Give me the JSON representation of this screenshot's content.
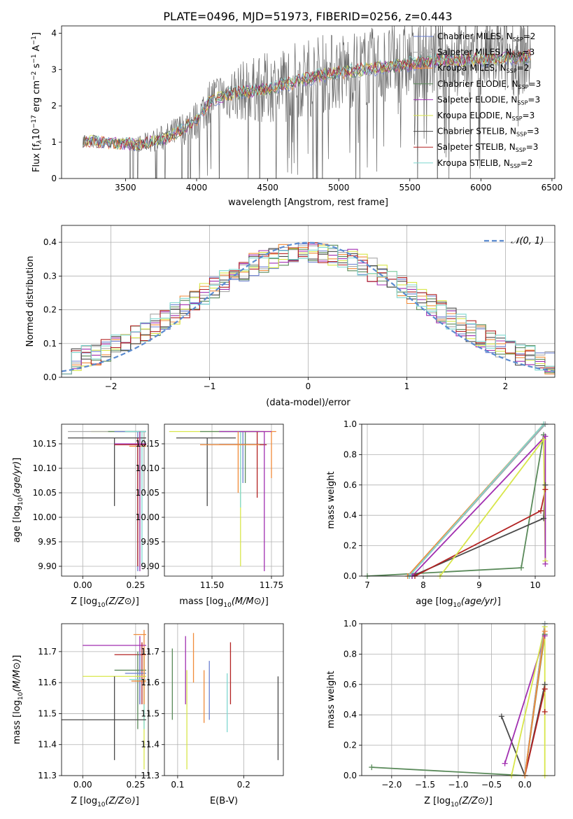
{
  "figure": {
    "title": "PLATE=0496, MJD=51973, FIBERID=0256, z=0.443"
  },
  "models": [
    {
      "name": "Chabrier MILES",
      "nssp": "2",
      "color": "#6b7fd0"
    },
    {
      "name": "Salpeter MILES",
      "nssp": "3",
      "color": "#a8a8a8"
    },
    {
      "name": "Kroupa MILES",
      "nssp": "2",
      "color": "#f08b3a"
    },
    {
      "name": "Chabrier ELODIE",
      "nssp": "3",
      "color": "#5a8a5a"
    },
    {
      "name": "Salpeter ELODIE",
      "nssp": "3",
      "color": "#a12fb0"
    },
    {
      "name": "Kroupa ELODIE",
      "nssp": "3",
      "color": "#d8e64a"
    },
    {
      "name": "Chabrier STELIB",
      "nssp": "3",
      "color": "#4a4a4a"
    },
    {
      "name": "Salpeter STELIB",
      "nssp": "3",
      "color": "#b22222"
    },
    {
      "name": "Kroupa STELIB",
      "nssp": "2",
      "color": "#7fd8d0"
    }
  ],
  "chart_data": [
    {
      "id": "spectrum",
      "type": "line",
      "xlabel": "wavelength [Angstrom, rest frame]",
      "ylabel_parts": [
        "Flux [f",
        "λ",
        "10",
        "−17",
        " erg cm",
        "−2",
        " s",
        "−1",
        " A",
        "−1",
        "]"
      ],
      "xlim": [
        3050,
        6520
      ],
      "ylim": [
        0,
        4.2
      ],
      "xticks": [
        3500,
        4000,
        4500,
        5000,
        5500,
        6000,
        6500
      ],
      "yticks": [
        0,
        1,
        2,
        3,
        4
      ],
      "data_color": "#666666",
      "continuum": [
        [
          3200,
          1.05
        ],
        [
          3400,
          1.0
        ],
        [
          3600,
          0.95
        ],
        [
          3800,
          1.15
        ],
        [
          4000,
          1.6
        ],
        [
          4100,
          2.2
        ],
        [
          4300,
          2.4
        ],
        [
          4500,
          2.5
        ],
        [
          4700,
          2.7
        ],
        [
          4900,
          2.9
        ],
        [
          5100,
          3.0
        ],
        [
          5300,
          3.1
        ],
        [
          5500,
          3.2
        ],
        [
          5700,
          3.3
        ],
        [
          5900,
          3.3
        ],
        [
          6100,
          3.35
        ],
        [
          6350,
          3.4
        ]
      ],
      "data_noise": {
        "lo": 3200,
        "hi": 6350,
        "n": 900,
        "amp_blue": 0.12,
        "amp_red": 1.1,
        "seed": 7
      }
    },
    {
      "id": "residuals",
      "type": "histogram",
      "xlabel": "(data-model)/error",
      "ylabel": "Normed distribution",
      "xlim": [
        -2.5,
        2.5
      ],
      "ylim": [
        0,
        0.45
      ],
      "xticks": [
        -2,
        -1,
        0,
        1,
        2
      ],
      "yticks": [
        0.0,
        0.1,
        0.2,
        0.3,
        0.4
      ],
      "bins": {
        "start": -2.5,
        "width": 0.1,
        "count": 50
      },
      "reference": {
        "label": "𝒩(0, 1)",
        "color": "#5b8bd0",
        "mu": 0,
        "sigma": 1
      }
    },
    {
      "id": "age_vs_Z",
      "type": "errorbar",
      "xlabel": "Z [log10(Z/Z⊙)]",
      "ylabel": "age  [log10(age/yr)]",
      "xlim": [
        -0.1,
        0.31
      ],
      "ylim": [
        9.88,
        10.19
      ],
      "xticks": [
        0.0,
        0.25
      ],
      "yticks": [
        9.9,
        9.95,
        10.0,
        10.05,
        10.1,
        10.15
      ],
      "points": [
        {
          "x": 0.27,
          "xlo": 0.04,
          "xhi": 0.3,
          "y": 10.175,
          "ylo": 9.9,
          "yhi": 10.175,
          "model": 5
        },
        {
          "x": 0.29,
          "xlo": -0.07,
          "xhi": 0.3,
          "y": 10.175,
          "ylo": 10.05,
          "yhi": 10.175,
          "model": 1
        },
        {
          "x": 0.27,
          "xlo": 0.12,
          "xhi": 0.3,
          "y": 10.175,
          "ylo": 10.05,
          "yhi": 10.175,
          "model": 3
        },
        {
          "x": 0.26,
          "xlo": 0.15,
          "xhi": 0.3,
          "y": 10.175,
          "ylo": 9.89,
          "yhi": 10.175,
          "model": 0
        },
        {
          "x": 0.28,
          "xlo": 0.2,
          "xhi": 0.3,
          "y": 10.175,
          "ylo": 9.9,
          "yhi": 10.175,
          "model": 8
        },
        {
          "x": 0.15,
          "xlo": -0.07,
          "xhi": 0.3,
          "y": 10.162,
          "ylo": 10.023,
          "yhi": 10.162,
          "model": 6
        },
        {
          "x": 0.26,
          "xlo": 0.15,
          "xhi": 0.3,
          "y": 10.148,
          "ylo": 9.9,
          "yhi": 10.162,
          "model": 7
        },
        {
          "x": 0.27,
          "xlo": 0.22,
          "xhi": 0.3,
          "y": 10.145,
          "ylo": 10.06,
          "yhi": 10.175,
          "model": 2
        },
        {
          "x": 0.27,
          "xlo": 0.15,
          "xhi": 0.3,
          "y": 10.15,
          "ylo": 9.89,
          "yhi": 10.175,
          "model": 4
        }
      ]
    },
    {
      "id": "age_vs_mass",
      "type": "errorbar",
      "xlabel": "mass [log10(M/M⊙)]",
      "xlim": [
        11.3,
        11.8
      ],
      "ylim": [
        9.88,
        10.19
      ],
      "xticks": [
        11.5,
        11.75
      ],
      "yticks": [
        9.9,
        9.95,
        10.0,
        10.05,
        10.1,
        10.15
      ],
      "points": [
        {
          "x": 11.62,
          "xlo": 11.32,
          "xhi": 11.7,
          "y": 10.175,
          "ylo": 9.9,
          "yhi": 10.175,
          "model": 5
        },
        {
          "x": 11.64,
          "xlo": 11.45,
          "xhi": 11.7,
          "y": 10.175,
          "ylo": 10.07,
          "yhi": 10.175,
          "model": 3
        },
        {
          "x": 11.63,
          "xlo": 11.53,
          "xhi": 11.72,
          "y": 10.175,
          "ylo": 10.07,
          "yhi": 10.175,
          "model": 0
        },
        {
          "x": 11.75,
          "xlo": 11.62,
          "xhi": 11.77,
          "y": 10.175,
          "ylo": 10.08,
          "yhi": 10.175,
          "model": 2
        },
        {
          "x": 11.48,
          "xlo": 11.35,
          "xhi": 11.6,
          "y": 10.162,
          "ylo": 10.023,
          "yhi": 10.162,
          "model": 6
        },
        {
          "x": 11.62,
          "xlo": 11.6,
          "xhi": 11.63,
          "y": 10.175,
          "ylo": 10.02,
          "yhi": 10.175,
          "model": 8
        },
        {
          "x": 11.69,
          "xlo": 11.53,
          "xhi": 11.73,
          "y": 10.148,
          "ylo": 10.04,
          "yhi": 10.175,
          "model": 7
        },
        {
          "x": 11.72,
          "xlo": 11.53,
          "xhi": 11.75,
          "y": 10.175,
          "ylo": 9.89,
          "yhi": 10.175,
          "model": 4
        },
        {
          "x": 11.61,
          "xlo": 11.45,
          "xhi": 11.7,
          "y": 10.148,
          "ylo": 10.05,
          "yhi": 10.175,
          "model": 2
        }
      ]
    },
    {
      "id": "mass_weight_vs_age",
      "type": "line",
      "xlabel": "age  [log10(age/yr)]",
      "ylabel": "mass weight",
      "xlim": [
        6.9,
        10.35
      ],
      "ylim": [
        0,
        1
      ],
      "xticks": [
        7,
        8,
        9,
        10
      ],
      "yticks": [
        0.0,
        0.2,
        0.4,
        0.6,
        0.8,
        1.0
      ],
      "series": [
        {
          "model": 3,
          "x": [
            7.0,
            9.75,
            10.15
          ],
          "y": [
            0.0,
            0.055,
            0.93
          ]
        },
        {
          "model": 6,
          "x": [
            7.8,
            10.15,
            10.18
          ],
          "y": [
            0.0,
            0.38,
            0.6
          ]
        },
        {
          "model": 7,
          "x": [
            7.85,
            10.1,
            10.18
          ],
          "y": [
            0.0,
            0.43,
            0.57
          ]
        },
        {
          "model": 5,
          "x": [
            8.3,
            10.15,
            10.18
          ],
          "y": [
            0.0,
            0.9,
            0.1
          ]
        },
        {
          "model": 4,
          "x": [
            7.8,
            10.18,
            10.18
          ],
          "y": [
            0.0,
            0.92,
            0.08
          ]
        },
        {
          "model": 0,
          "x": [
            7.75,
            10.18
          ],
          "y": [
            0.0,
            1.0
          ]
        },
        {
          "model": 1,
          "x": [
            7.75,
            10.18
          ],
          "y": [
            0.0,
            1.0
          ]
        },
        {
          "model": 2,
          "x": [
            7.72,
            10.15
          ],
          "y": [
            0.0,
            1.0
          ]
        },
        {
          "model": 8,
          "x": [
            7.75,
            10.15
          ],
          "y": [
            0.0,
            1.0
          ]
        }
      ]
    },
    {
      "id": "mass_vs_Z",
      "type": "errorbar",
      "xlabel": "Z [log10(Z/Z⊙)]",
      "ylabel": "mass [log10(M/M⊙)]",
      "xlim": [
        -0.1,
        0.31
      ],
      "ylim": [
        11.3,
        11.79
      ],
      "xticks": [
        0.0,
        0.25
      ],
      "yticks": [
        11.3,
        11.4,
        11.5,
        11.6,
        11.7
      ],
      "points": [
        {
          "x": 0.29,
          "xlo": 0.24,
          "xhi": 0.3,
          "y": 11.755,
          "ylo": 11.6,
          "yhi": 11.77,
          "model": 2
        },
        {
          "x": 0.27,
          "xlo": 0.0,
          "xhi": 0.3,
          "y": 11.72,
          "ylo": 11.53,
          "yhi": 11.75,
          "model": 4
        },
        {
          "x": 0.28,
          "xlo": 0.15,
          "xhi": 0.3,
          "y": 11.69,
          "ylo": 11.53,
          "yhi": 11.73,
          "model": 7
        },
        {
          "x": 0.26,
          "xlo": 0.15,
          "xhi": 0.3,
          "y": 11.64,
          "ylo": 11.45,
          "yhi": 11.7,
          "model": 3
        },
        {
          "x": 0.27,
          "xlo": 0.2,
          "xhi": 0.3,
          "y": 11.63,
          "ylo": 11.53,
          "yhi": 11.7,
          "model": 0
        },
        {
          "x": 0.29,
          "xlo": 0.0,
          "xhi": 0.3,
          "y": 11.62,
          "ylo": 11.32,
          "yhi": 11.7,
          "model": 5
        },
        {
          "x": 0.29,
          "xlo": 0.22,
          "xhi": 0.3,
          "y": 11.61,
          "ylo": 11.45,
          "yhi": 11.7,
          "model": 8
        },
        {
          "x": 0.29,
          "xlo": 0.23,
          "xhi": 0.3,
          "y": 11.605,
          "ylo": 11.53,
          "yhi": 11.7,
          "model": 2
        },
        {
          "x": 0.15,
          "xlo": -0.1,
          "xhi": 0.3,
          "y": 11.48,
          "ylo": 11.35,
          "yhi": 11.62,
          "model": 6
        }
      ]
    },
    {
      "id": "mass_vs_ebv",
      "type": "errorbar",
      "xlabel": "E(B-V)",
      "xlim": [
        0.08,
        0.26
      ],
      "ylim": [
        11.3,
        11.79
      ],
      "xticks": [
        0.1,
        0.2
      ],
      "yticks": [
        11.3,
        11.4,
        11.5,
        11.6,
        11.7
      ],
      "vbars": [
        {
          "x": 0.092,
          "ylo": 11.48,
          "yhi": 11.71,
          "model": 3
        },
        {
          "x": 0.112,
          "ylo": 11.53,
          "yhi": 11.75,
          "model": 4
        },
        {
          "x": 0.114,
          "ylo": 11.32,
          "yhi": 11.64,
          "model": 5
        },
        {
          "x": 0.124,
          "ylo": 11.6,
          "yhi": 11.76,
          "model": 2
        },
        {
          "x": 0.14,
          "ylo": 11.47,
          "yhi": 11.64,
          "model": 2
        },
        {
          "x": 0.148,
          "ylo": 11.48,
          "yhi": 11.67,
          "model": 0
        },
        {
          "x": 0.175,
          "ylo": 11.44,
          "yhi": 11.63,
          "model": 8
        },
        {
          "x": 0.18,
          "ylo": 11.53,
          "yhi": 11.73,
          "model": 7
        },
        {
          "x": 0.252,
          "ylo": 11.35,
          "yhi": 11.62,
          "model": 6
        }
      ]
    },
    {
      "id": "mass_weight_vs_Z",
      "type": "line",
      "xlabel": "Z [log10(Z/Z⊙)]",
      "ylabel": "mass weight",
      "xlim": [
        -2.45,
        0.45
      ],
      "ylim": [
        0,
        1
      ],
      "xticks": [
        -2.0,
        -1.5,
        -1.0,
        -0.5,
        0.0
      ],
      "yticks": [
        0.0,
        0.2,
        0.4,
        0.6,
        0.8,
        1.0
      ],
      "series": [
        {
          "model": 3,
          "x": [
            -2.3,
            0.0,
            0.3
          ],
          "y": [
            0.055,
            0.0,
            0.93
          ]
        },
        {
          "model": 6,
          "x": [
            -0.35,
            0.0,
            0.3
          ],
          "y": [
            0.39,
            0.0,
            0.6
          ]
        },
        {
          "model": 7,
          "x": [
            0.0,
            0.3,
            0.3
          ],
          "y": [
            0.0,
            0.57,
            0.42
          ]
        },
        {
          "model": 4,
          "x": [
            -0.3,
            0.3
          ],
          "y": [
            0.08,
            0.92
          ]
        },
        {
          "model": 5,
          "x": [
            -0.2,
            0.3,
            0.3
          ],
          "y": [
            0.0,
            0.98,
            0.0
          ]
        },
        {
          "model": 0,
          "x": [
            0.0,
            0.3
          ],
          "y": [
            0.0,
            1.0
          ]
        },
        {
          "model": 8,
          "x": [
            0.0,
            0.3
          ],
          "y": [
            0.0,
            1.0
          ]
        },
        {
          "model": 1,
          "x": [
            0.0,
            0.3
          ],
          "y": [
            0.0,
            1.0
          ]
        },
        {
          "model": 2,
          "x": [
            0.0,
            0.3
          ],
          "y": [
            0.0,
            0.95
          ]
        }
      ]
    }
  ]
}
